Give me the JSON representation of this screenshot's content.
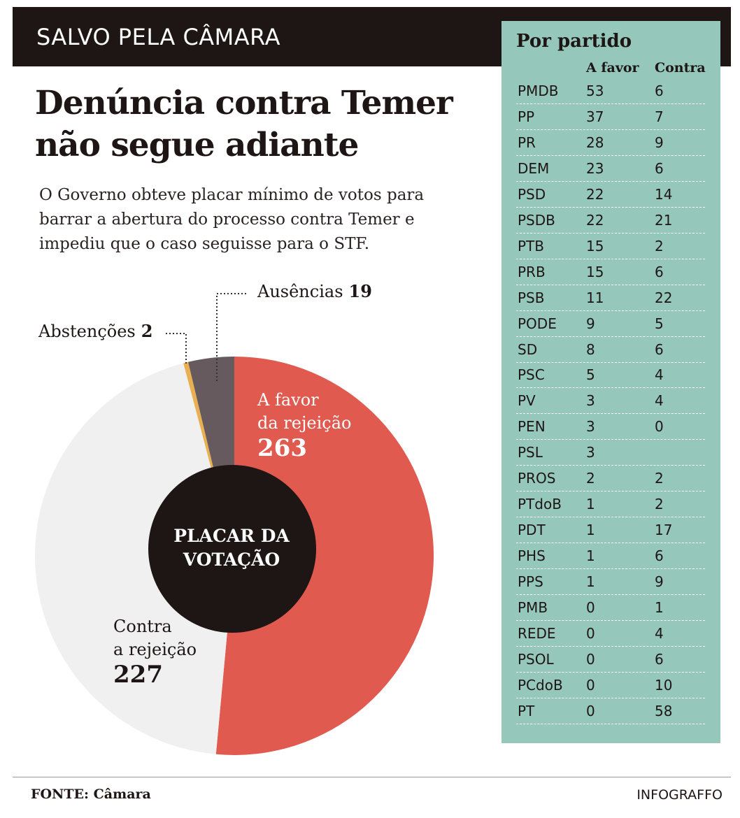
{
  "header": {
    "kicker": "SALVO PELA CÂMARA",
    "title": "Denúncia contra Temer\nnão segue adiante",
    "subtitle": "O Governo obteve placar mínimo de votos para\nbarrar a abertura do processo contra Temer e\nimpediu que o caso seguisse para o STF."
  },
  "chart_data": {
    "type": "pie",
    "center_label": "PLACAR DA VOTAÇÃO",
    "categories": [
      "A favor\nda rejeição",
      "Contra\na rejeição",
      "Abstenções",
      "Ausências"
    ],
    "values": [
      263,
      227,
      2,
      19
    ],
    "colors": [
      "#e05a50",
      "#f0f0f0",
      "#e8b050",
      "#675a5e"
    ]
  },
  "table": {
    "title": "Por partido",
    "columns": [
      "A favor",
      "Contra"
    ],
    "rows": [
      [
        "PMDB",
        53,
        6
      ],
      [
        "PP",
        37,
        7
      ],
      [
        "PR",
        28,
        9
      ],
      [
        "DEM",
        23,
        6
      ],
      [
        "PSD",
        22,
        14
      ],
      [
        "PSDB",
        22,
        21
      ],
      [
        "PTB",
        15,
        2
      ],
      [
        "PRB",
        15,
        6
      ],
      [
        "PSB",
        11,
        22
      ],
      [
        "PODE",
        9,
        5
      ],
      [
        "SD",
        8,
        6
      ],
      [
        "PSC",
        5,
        4
      ],
      [
        "PV",
        3,
        4
      ],
      [
        "PEN",
        3,
        0
      ],
      [
        "PSL",
        3,
        null
      ],
      [
        "PROS",
        2,
        2
      ],
      [
        "PTdoB",
        1,
        2
      ],
      [
        "PDT",
        1,
        17
      ],
      [
        "PHS",
        1,
        6
      ],
      [
        "PPS",
        1,
        9
      ],
      [
        "PMB",
        0,
        1
      ],
      [
        "REDE",
        0,
        4
      ],
      [
        "PSOL",
        0,
        6
      ],
      [
        "PCdoB",
        0,
        10
      ],
      [
        "PT",
        0,
        58
      ]
    ]
  },
  "footer": {
    "source": "FONTE: Câmara",
    "credit": "INFOGRAFFO"
  }
}
